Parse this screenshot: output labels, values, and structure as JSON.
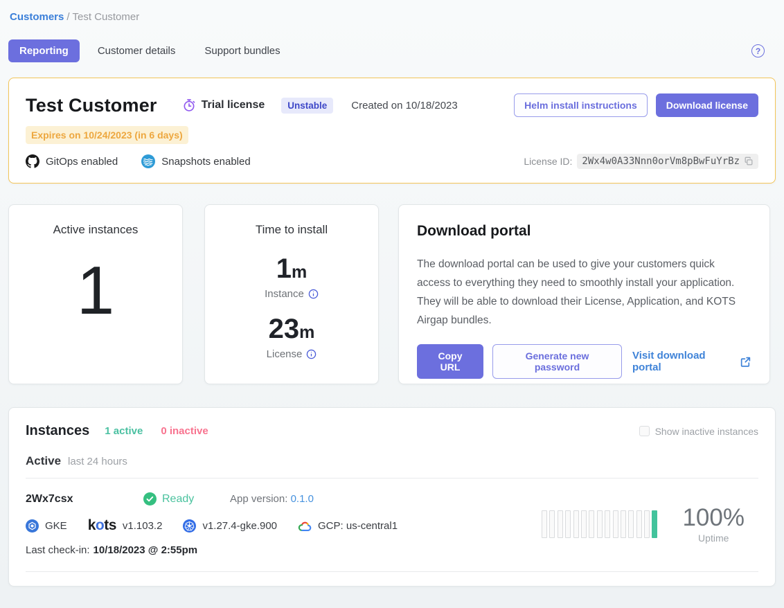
{
  "breadcrumb": {
    "link": "Customers",
    "separator": "/",
    "current": "Test Customer"
  },
  "tabs": [
    {
      "label": "Reporting",
      "active": true
    },
    {
      "label": "Customer details",
      "active": false
    },
    {
      "label": "Support bundles",
      "active": false
    }
  ],
  "help": {
    "glyph": "?"
  },
  "customer_card": {
    "title": "Test Customer",
    "license_type": "Trial license",
    "channel_badge": "Unstable",
    "created": "Created on 10/18/2023",
    "expires": "Expires on 10/24/2023 (in 6 days)",
    "helm_button": "Helm install instructions",
    "download_button": "Download license",
    "features": [
      {
        "icon": "github-icon",
        "label": "GitOps enabled"
      },
      {
        "icon": "snapshots-icon",
        "label": "Snapshots enabled"
      }
    ],
    "license_id_label": "License ID:",
    "license_id": "2Wx4w0A33Nnn0orVm8pBwFuYrBz"
  },
  "stats": {
    "active_instances": {
      "title": "Active instances",
      "value": "1"
    },
    "time_to_install": {
      "title": "Time to install",
      "instance": {
        "value": "1",
        "unit": "m",
        "label": "Instance"
      },
      "license": {
        "value": "23",
        "unit": "m",
        "label": "License"
      }
    }
  },
  "download_portal": {
    "title": "Download portal",
    "description": "The download portal can be used to give your customers quick access to everything they need to smoothly install your application. They will be able to download their License, Application, and KOTS Airgap bundles.",
    "copy_url_button": "Copy URL",
    "generate_password_button": "Generate new password",
    "visit_link": "Visit download portal"
  },
  "instances": {
    "title": "Instances",
    "active_count": "1 active",
    "inactive_count": "0 inactive",
    "show_inactive_label": "Show inactive instances",
    "section_label": "Active",
    "time_range": "last 24 hours",
    "instance": {
      "id": "2Wx7csx",
      "status": "Ready",
      "app_version_label": "App version:",
      "app_version": "0.1.0",
      "distribution": "GKE",
      "kots_k": "k",
      "kots_o": "o",
      "kots_ts": "ts",
      "kots_version": "v1.103.2",
      "k8s_version": "v1.27.4-gke.900",
      "cloud_region": "GCP: us-central1",
      "last_checkin_label": "Last check-in:",
      "last_checkin": "10/18/2023 @ 2:55pm",
      "uptime_value": "100%",
      "uptime_label": "Uptime",
      "uptime_bars": [
        "empty",
        "empty",
        "empty",
        "empty",
        "empty",
        "empty",
        "empty",
        "empty",
        "empty",
        "empty",
        "empty",
        "empty",
        "empty",
        "empty",
        "up"
      ]
    }
  },
  "colors": {
    "primary_purple": "#6c6fde",
    "channel_badge_bg": "#e7e9fb",
    "channel_badge_text": "#3e48c8",
    "hero_border": "#f2c558",
    "expires_bg": "#fcf1d4",
    "expires_text": "#eda73f",
    "link_blue": "#3f83d8",
    "active_green": "#4ac0a1",
    "inactive_pink": "#f8738f",
    "uptime_bar_green": "#42c39c"
  }
}
